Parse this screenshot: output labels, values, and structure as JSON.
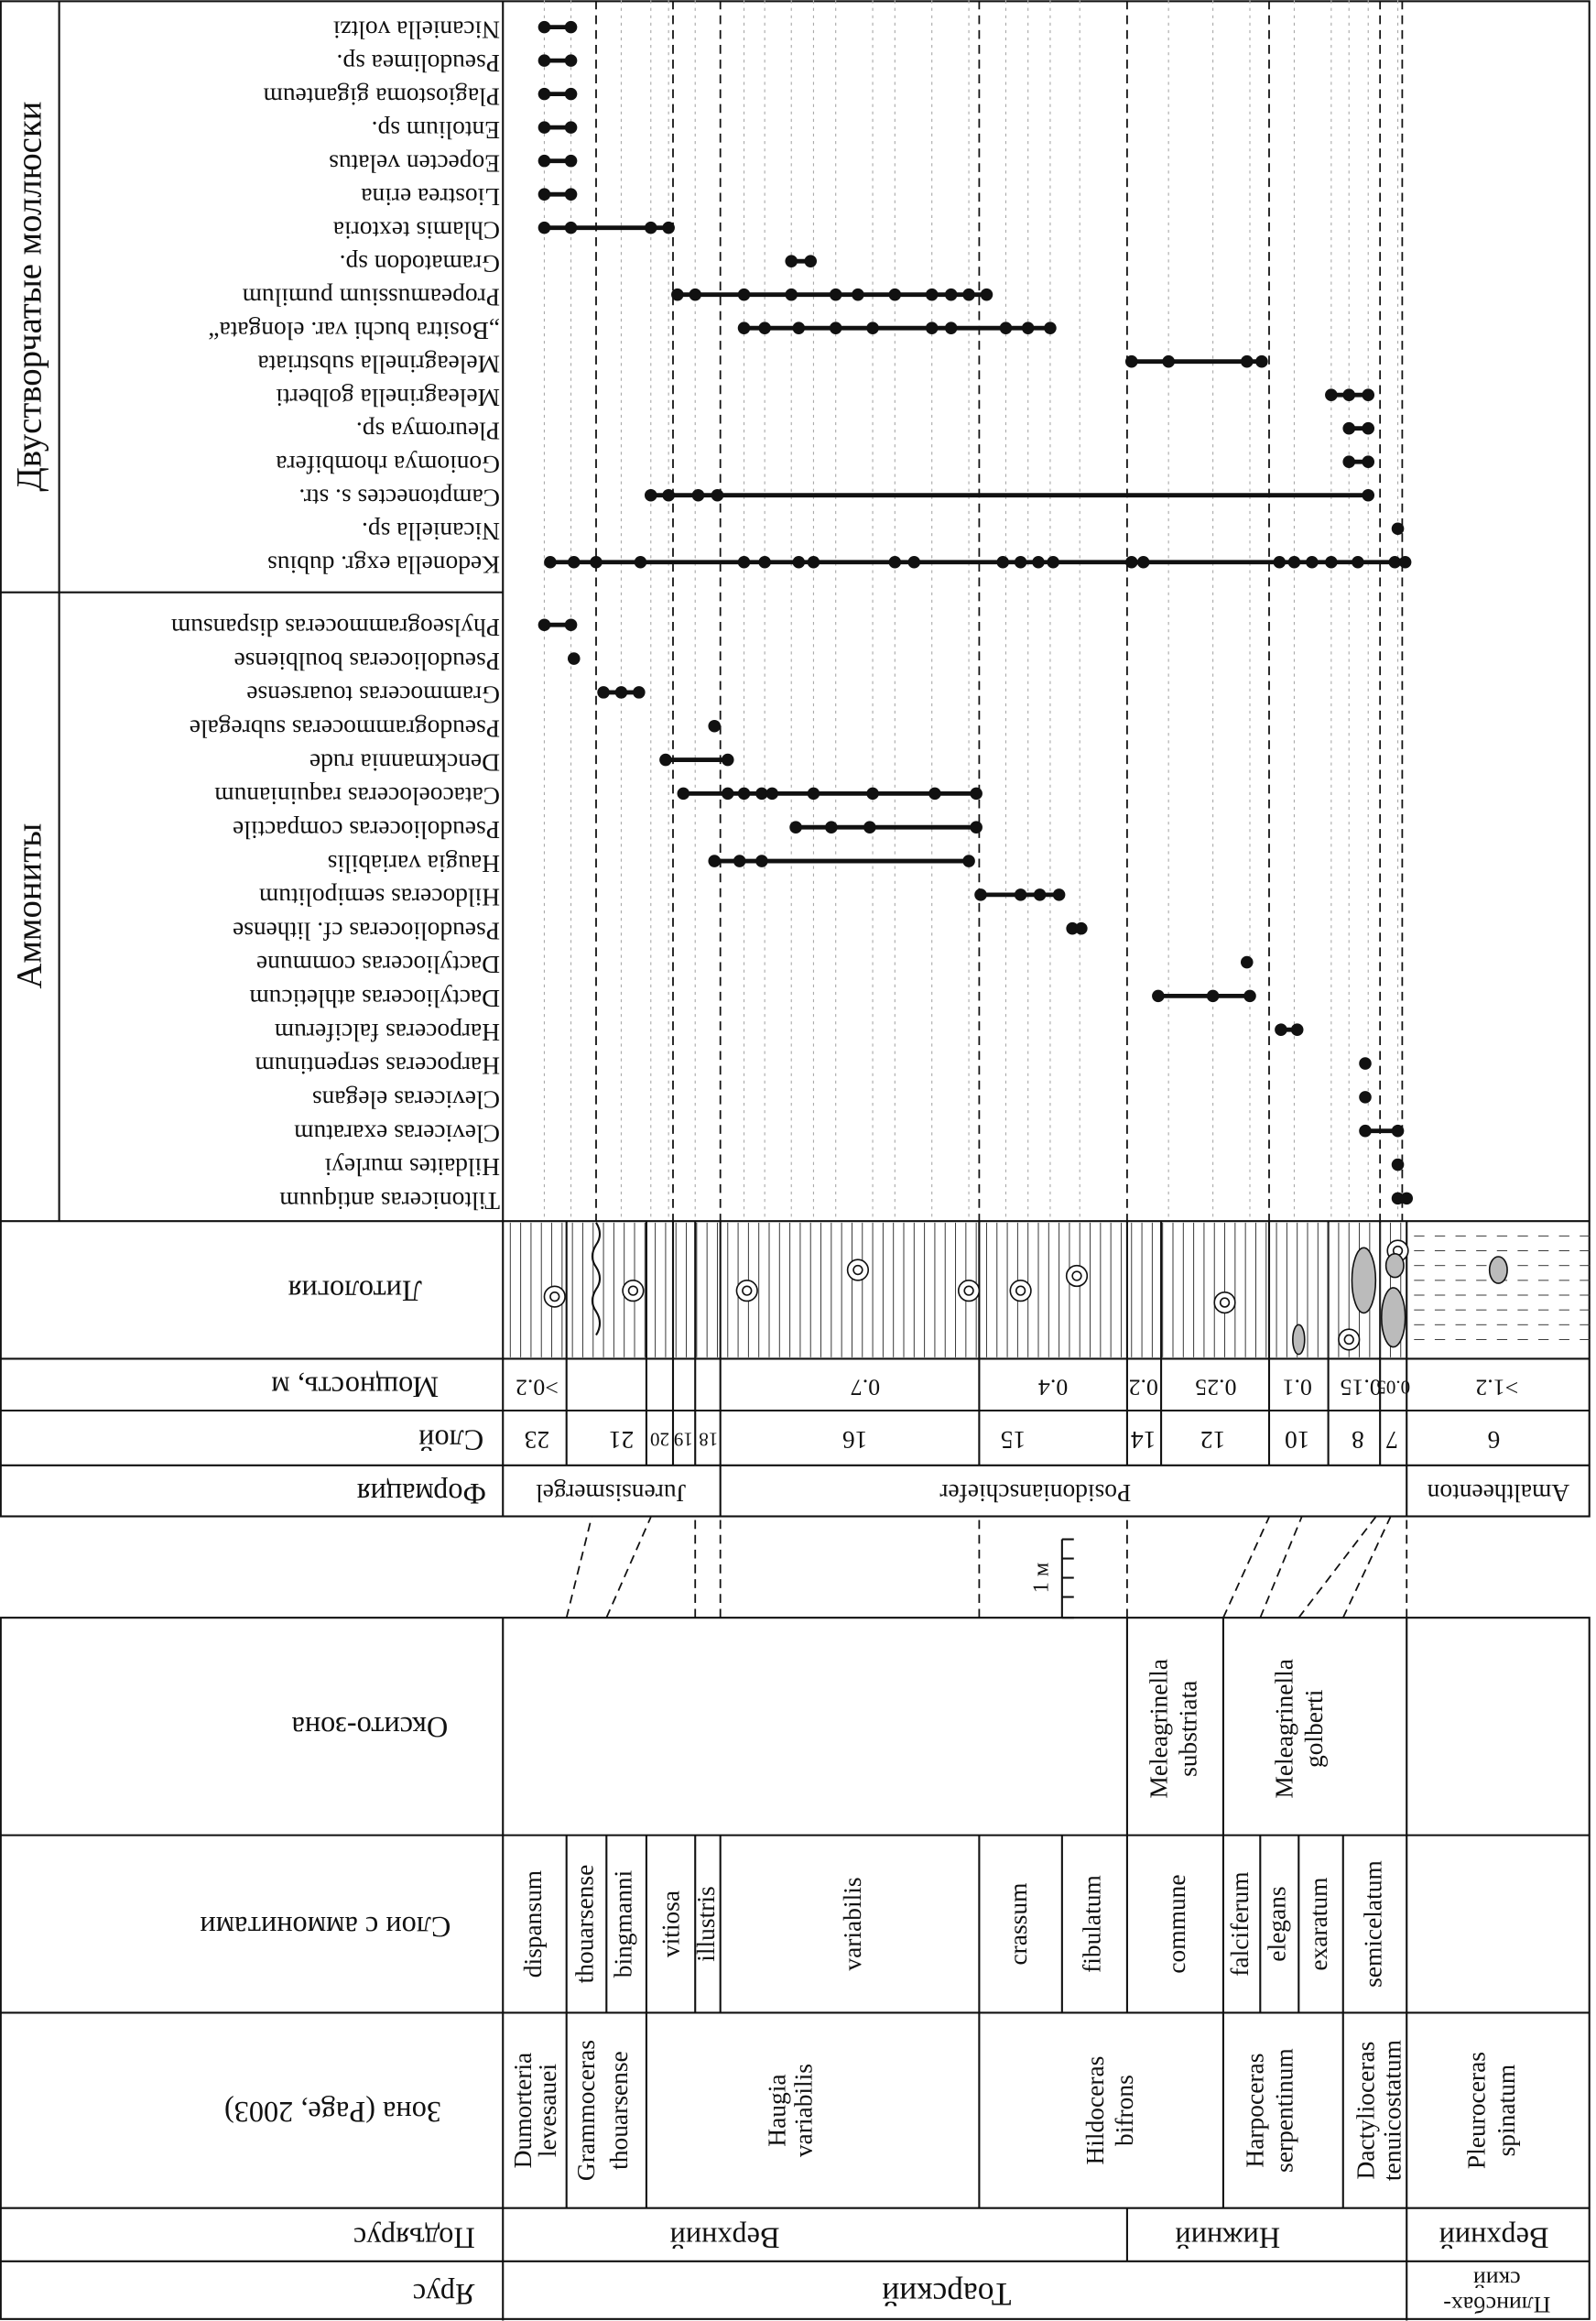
{
  "groups": {
    "bivalves": "Двустворчатые моллюски",
    "ammonites": "Аммониты"
  },
  "bivalves": [
    "Nicaniella voltzi",
    "Pseudolimea sp.",
    "Plagiostoma giganteum",
    "Entolium sp.",
    "Eopecten velatus",
    "Liostrea erina",
    "Chlamis textoria",
    "Gramatodon sp.",
    "Propeamussium pumilum",
    "„Bositra buchi var. elongata“",
    "Meleagrinella substriata",
    "Meleagrinella golberti",
    "Pleuromya sp.",
    "Goniomya rhombifera",
    "Camptonectes s. str.",
    "Nicaniella sp.",
    "Kedonella exgr. dubius"
  ],
  "ammonites": [
    "Phylseogrammoceras dispansum",
    "Pseudolioceras boulbiense",
    "Grammoceras touarsense",
    "Pseudogrammoceras subregale",
    "Denckmannia rude",
    "Catacoeloceras raquinianum",
    "Pseudolioceras compactile",
    "Haugia variabilis",
    "Hildoceras semipolitum",
    "Pseudolioceras cf. lithense",
    "Dactylioceras commune",
    "Dactylioceras athleticum",
    "Harpoceras falciferum",
    "Harpoceras serpentinum",
    "Cleviceras elegans",
    "Cleviceras exaratum",
    "Hildaites murleyi",
    "Tiltoniceras antiquum"
  ],
  "row_labels": {
    "lithology": "Литология",
    "thickness": "Мощность, м",
    "layer": "Слой",
    "formation": "Формация",
    "oxyto_zone": "Оксито-зона",
    "ammonite_beds": "Слои с аммонитами",
    "zone": "Зона (Page, 2003)",
    "substage": "Подъярус",
    "stage": "Ярус"
  },
  "layers": [
    "23",
    "21",
    "20",
    "19",
    "18",
    "16",
    "15",
    "14",
    "12",
    "10",
    "8",
    "7",
    "6"
  ],
  "thickness": [
    ">0.2",
    "0.7",
    "0.4",
    "0.2",
    "0.25",
    "0.1",
    "0.15",
    "0.05",
    ">1.2"
  ],
  "formations": [
    "Jurensismergel",
    "Posidonianschiefer",
    "Amaltheenton"
  ],
  "scale_label": "1 м",
  "oxyto_zones": [
    [
      "Meleagrinella",
      "substriata"
    ],
    [
      "Meleagrinella",
      "golberti"
    ]
  ],
  "ammonite_beds": [
    "dispansum",
    "thouarsense",
    "bingmanni",
    "vitiosa",
    "illustris",
    "variabilis",
    "crassum",
    "fibulatum",
    "commune",
    "falciferum",
    "elegans",
    "exaratum",
    "semicelatum"
  ],
  "zones": [
    [
      "Dumorteria",
      "levesauei"
    ],
    [
      "Grammoceras",
      "thouarsense"
    ],
    [
      "Haugia",
      "variabilis"
    ],
    [
      "Hildoceras",
      "bifrons"
    ],
    [
      "Harpoceras",
      "serpentinum"
    ],
    [
      "Dactylioceras",
      "tenuicostatum"
    ],
    [
      "Pleuroceras",
      "spinatum"
    ]
  ],
  "substages": [
    "Верхний",
    "Нижний",
    "Верхний"
  ],
  "stages": [
    "Тоарский",
    [
      "Плинсбах-",
      "ский"
    ]
  ]
}
